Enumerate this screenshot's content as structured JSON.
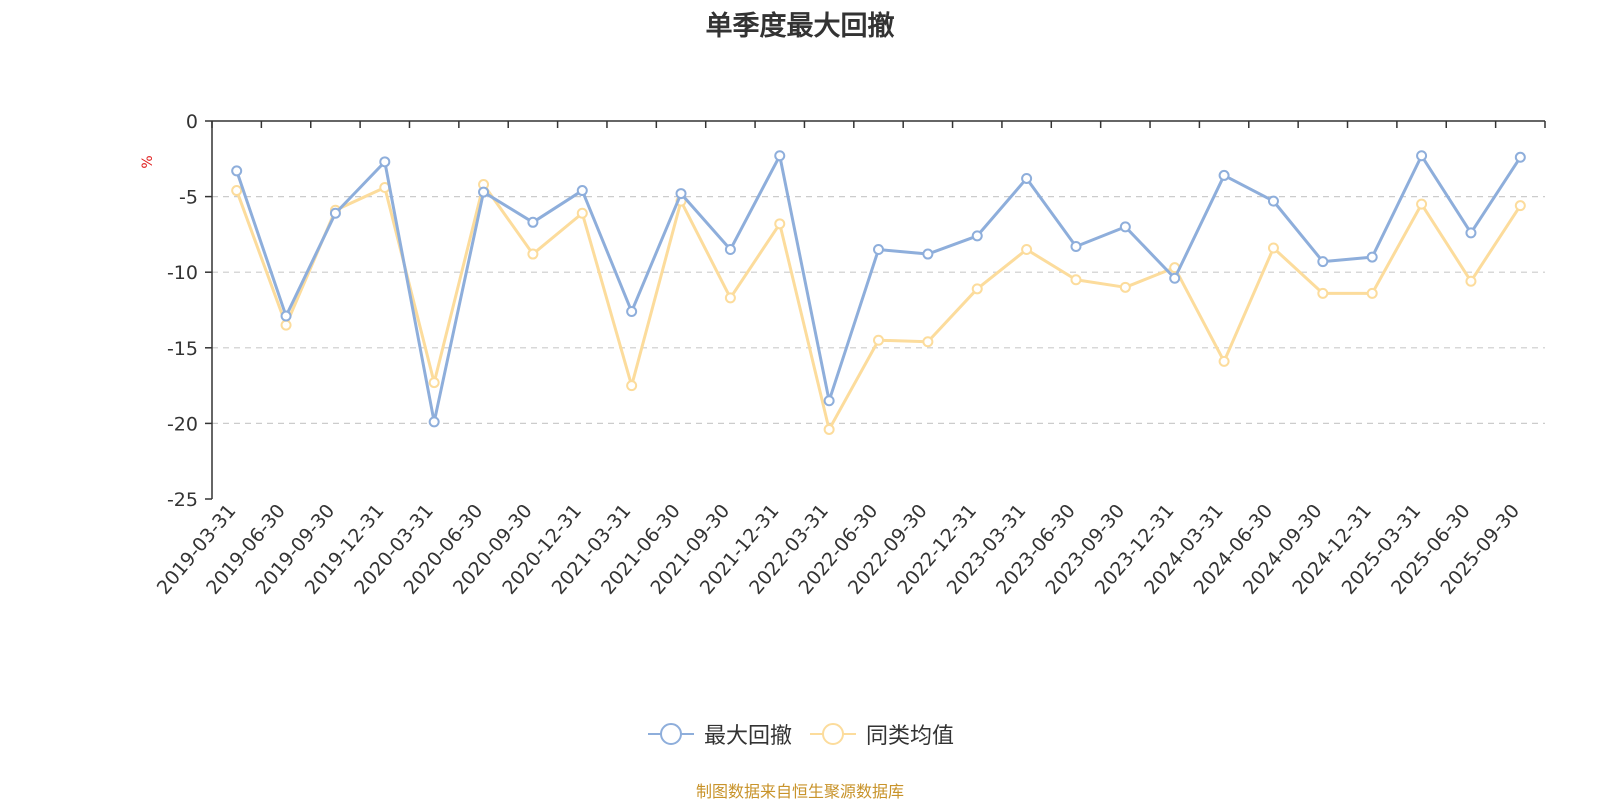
{
  "chart_data": {
    "type": "line",
    "title": "单季度最大回撤",
    "ylabel": "%",
    "ylim": [
      -25,
      0
    ],
    "yticks": [
      0,
      -5,
      -10,
      -15,
      -20,
      -25
    ],
    "grid": true,
    "legend_position": "bottom",
    "x": [
      "2019-03-31",
      "2019-06-30",
      "2019-09-30",
      "2019-12-31",
      "2020-03-31",
      "2020-06-30",
      "2020-09-30",
      "2020-12-31",
      "2021-03-31",
      "2021-06-30",
      "2021-09-30",
      "2021-12-31",
      "2022-03-31",
      "2022-06-30",
      "2022-09-30",
      "2022-12-31",
      "2023-03-31",
      "2023-06-30",
      "2023-09-30",
      "2023-12-31",
      "2024-03-31",
      "2024-06-30",
      "2024-09-30",
      "2024-12-31",
      "2025-03-31",
      "2025-06-30",
      "2025-09-30"
    ],
    "series": [
      {
        "name": "最大回撤",
        "color": "#8eaedb",
        "values": [
          -3.3,
          -12.9,
          -6.1,
          -2.7,
          -19.9,
          -4.7,
          -6.7,
          -4.6,
          -12.6,
          -4.8,
          -8.5,
          -2.3,
          -18.5,
          -8.5,
          -8.8,
          -7.6,
          -3.8,
          -8.3,
          -7.0,
          -10.4,
          -3.6,
          -5.3,
          -9.3,
          -9.0,
          -2.3,
          -7.4,
          -2.4
        ]
      },
      {
        "name": "同类均值",
        "color": "#fcdc9c",
        "values": [
          -4.6,
          -13.5,
          -5.9,
          -4.4,
          -17.3,
          -4.2,
          -8.8,
          -6.1,
          -17.5,
          -5.3,
          -11.7,
          -6.8,
          -20.4,
          -14.5,
          -14.6,
          -11.1,
          -8.5,
          -10.5,
          -11.0,
          -9.7,
          -15.9,
          -8.4,
          -11.4,
          -11.4,
          -5.5,
          -10.6,
          -5.6
        ]
      }
    ],
    "source": "制图数据来自恒生聚源数据库"
  }
}
